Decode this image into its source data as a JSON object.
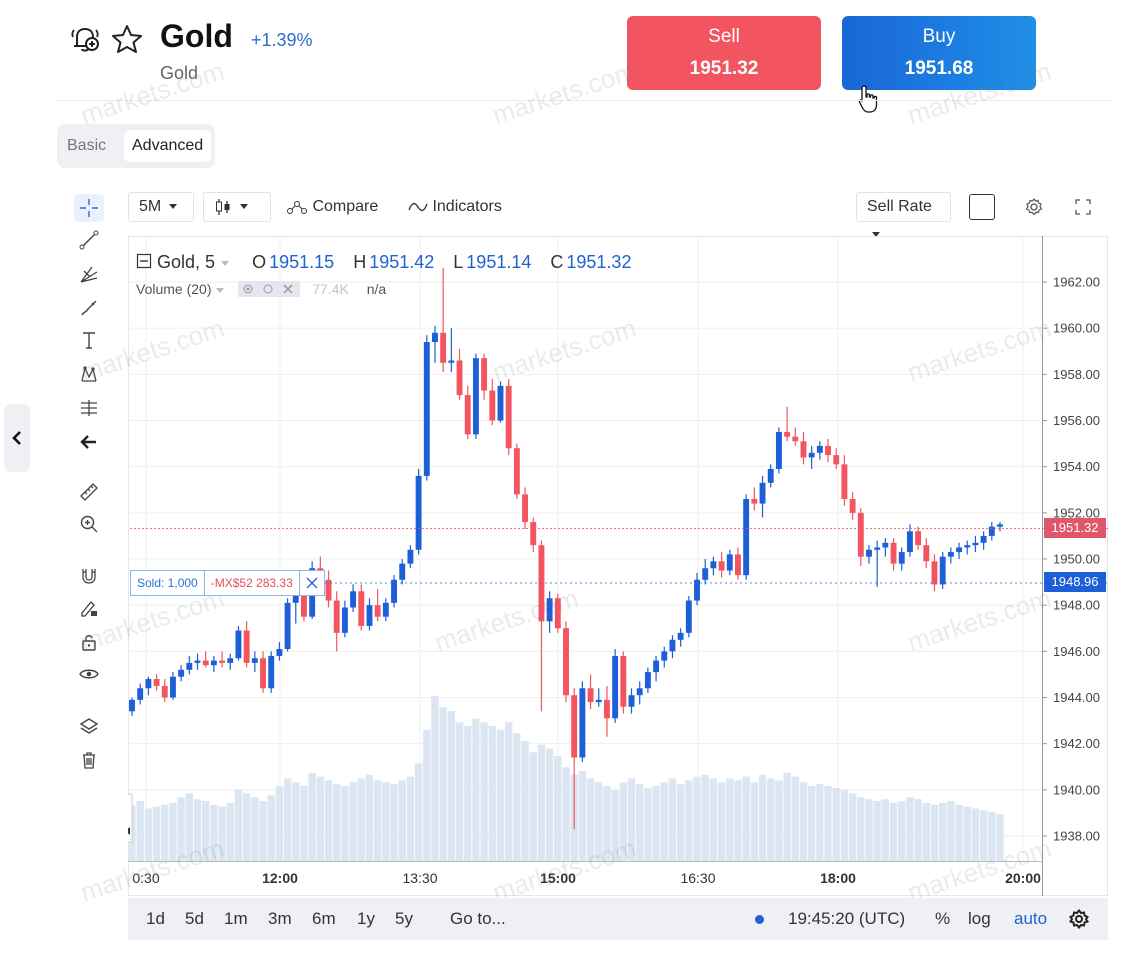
{
  "instrument": {
    "title": "Gold",
    "subtitle": "Gold",
    "change": "+1.39%"
  },
  "trade": {
    "sell_label": "Sell",
    "sell_price": "1951.32",
    "buy_label": "Buy",
    "buy_price": "1951.68"
  },
  "mode_tabs": {
    "basic": "Basic",
    "advanced": "Advanced",
    "selected": "Advanced"
  },
  "toolbar": {
    "interval": "5M",
    "compare": "Compare",
    "indicators": "Indicators",
    "rate": "Sell Rate"
  },
  "legend": {
    "series": "Gold, 5",
    "o_key": "O",
    "o": "1951.15",
    "h_key": "H",
    "h": "1951.42",
    "l_key": "L",
    "l": "1951.14",
    "c_key": "C",
    "c": "1951.32",
    "volume_label": "Volume (20)",
    "volume_value": "77.4K",
    "volume_na": "n/a"
  },
  "trade_line": {
    "sold": "Sold: 1,000",
    "pnl": "-MX$52 283.33"
  },
  "price_tags": {
    "sell": "1951.32",
    "buy": "1948.96"
  },
  "bottom_bar": {
    "ranges": [
      "1d",
      "5d",
      "1m",
      "3m",
      "6m",
      "1y",
      "5y"
    ],
    "goto": "Go to...",
    "time": "19:45:20 (UTC)",
    "percent": "%",
    "log": "log",
    "auto": "auto"
  },
  "watermark": "markets.com",
  "colors": {
    "up": "#1c5fd6",
    "down": "#f2555f",
    "volume": "#dbe6f2",
    "accent": "#1e62d0"
  },
  "chart_data": {
    "type": "candlestick",
    "y_ticks": [
      "1962.00",
      "1960.00",
      "1958.00",
      "1956.00",
      "1954.00",
      "1952.00",
      "1950.00",
      "1948.00",
      "1946.00",
      "1944.00",
      "1942.00",
      "1940.00",
      "1938.00"
    ],
    "x_ticks": [
      "0:30",
      "12:00",
      "13:30",
      "15:00",
      "16:30",
      "18:00",
      "20:00"
    ],
    "ylim": [
      1937.2,
      1963.6
    ],
    "candles": [
      [
        1943.4,
        1944.0,
        1943.2,
        1943.9
      ],
      [
        1943.9,
        1944.6,
        1943.7,
        1944.4
      ],
      [
        1944.4,
        1944.9,
        1944.1,
        1944.8
      ],
      [
        1944.8,
        1945.0,
        1944.3,
        1944.5
      ],
      [
        1944.5,
        1944.8,
        1943.8,
        1944.0
      ],
      [
        1944.0,
        1945.1,
        1943.9,
        1944.9
      ],
      [
        1944.9,
        1945.4,
        1944.7,
        1945.2
      ],
      [
        1945.2,
        1945.8,
        1945.0,
        1945.5
      ],
      [
        1945.5,
        1945.9,
        1945.2,
        1945.6
      ],
      [
        1945.6,
        1946.0,
        1945.3,
        1945.4
      ],
      [
        1945.4,
        1945.8,
        1945.1,
        1945.6
      ],
      [
        1945.6,
        1946.0,
        1945.3,
        1945.5
      ],
      [
        1945.5,
        1945.9,
        1945.2,
        1945.7
      ],
      [
        1945.7,
        1947.1,
        1945.6,
        1946.9
      ],
      [
        1946.9,
        1947.3,
        1945.3,
        1945.5
      ],
      [
        1945.5,
        1946.0,
        1945.1,
        1945.7
      ],
      [
        1945.7,
        1946.0,
        1944.2,
        1944.4
      ],
      [
        1944.4,
        1946.0,
        1944.2,
        1945.8
      ],
      [
        1945.8,
        1946.4,
        1945.6,
        1946.1
      ],
      [
        1946.1,
        1948.3,
        1946.0,
        1948.1
      ],
      [
        1948.1,
        1949.0,
        1947.2,
        1948.6
      ],
      [
        1948.6,
        1948.9,
        1947.3,
        1947.5
      ],
      [
        1947.5,
        1949.9,
        1947.4,
        1949.6
      ],
      [
        1949.6,
        1950.1,
        1948.9,
        1949.1
      ],
      [
        1949.1,
        1949.5,
        1947.9,
        1948.2
      ],
      [
        1948.2,
        1948.6,
        1946.0,
        1946.8
      ],
      [
        1946.8,
        1948.2,
        1946.6,
        1947.9
      ],
      [
        1947.9,
        1948.9,
        1947.7,
        1948.6
      ],
      [
        1948.6,
        1948.9,
        1946.9,
        1947.1
      ],
      [
        1947.1,
        1948.3,
        1946.9,
        1948.0
      ],
      [
        1948.0,
        1948.7,
        1947.3,
        1947.5
      ],
      [
        1947.5,
        1948.3,
        1947.3,
        1948.1
      ],
      [
        1948.1,
        1949.3,
        1947.9,
        1949.1
      ],
      [
        1949.1,
        1950.0,
        1948.9,
        1949.8
      ],
      [
        1949.8,
        1950.6,
        1949.6,
        1950.4
      ],
      [
        1950.4,
        1953.9,
        1950.2,
        1953.6
      ],
      [
        1953.6,
        1959.7,
        1953.4,
        1959.4
      ],
      [
        1959.4,
        1960.1,
        1958.5,
        1959.8
      ],
      [
        1959.8,
        1962.6,
        1958.1,
        1958.5
      ],
      [
        1958.5,
        1960.0,
        1958.1,
        1958.6
      ],
      [
        1958.6,
        1959.1,
        1956.9,
        1957.1
      ],
      [
        1957.1,
        1957.5,
        1955.2,
        1955.4
      ],
      [
        1955.4,
        1958.9,
        1955.2,
        1958.7
      ],
      [
        1958.7,
        1958.9,
        1956.9,
        1957.3
      ],
      [
        1957.3,
        1957.8,
        1955.8,
        1956.0
      ],
      [
        1956.0,
        1957.7,
        1955.9,
        1957.5
      ],
      [
        1957.5,
        1957.8,
        1954.5,
        1954.8
      ],
      [
        1954.8,
        1955.0,
        1952.6,
        1952.8
      ],
      [
        1952.8,
        1953.1,
        1951.3,
        1951.6
      ],
      [
        1951.6,
        1951.8,
        1950.3,
        1950.6
      ],
      [
        1950.6,
        1950.8,
        1943.4,
        1947.3
      ],
      [
        1947.3,
        1948.6,
        1946.8,
        1948.3
      ],
      [
        1948.3,
        1948.5,
        1946.8,
        1947.0
      ],
      [
        1947.0,
        1947.3,
        1943.8,
        1944.1
      ],
      [
        1944.1,
        1944.4,
        1938.3,
        1941.4
      ],
      [
        1941.4,
        1944.7,
        1941.2,
        1944.4
      ],
      [
        1944.4,
        1945.0,
        1943.5,
        1943.8
      ],
      [
        1943.8,
        1944.4,
        1943.6,
        1943.9
      ],
      [
        1943.9,
        1944.5,
        1942.3,
        1943.1
      ],
      [
        1943.1,
        1946.1,
        1942.9,
        1945.8
      ],
      [
        1945.8,
        1946.0,
        1943.3,
        1943.6
      ],
      [
        1943.6,
        1944.4,
        1943.3,
        1944.1
      ],
      [
        1944.1,
        1944.7,
        1943.7,
        1944.4
      ],
      [
        1944.4,
        1945.3,
        1944.2,
        1945.1
      ],
      [
        1945.1,
        1945.8,
        1944.7,
        1945.6
      ],
      [
        1945.6,
        1946.2,
        1945.3,
        1946.0
      ],
      [
        1946.0,
        1946.7,
        1945.7,
        1946.5
      ],
      [
        1946.5,
        1947.0,
        1946.2,
        1946.8
      ],
      [
        1946.8,
        1948.4,
        1946.6,
        1948.2
      ],
      [
        1948.2,
        1949.4,
        1948.0,
        1949.1
      ],
      [
        1949.1,
        1950.0,
        1948.9,
        1949.6
      ],
      [
        1949.6,
        1950.1,
        1949.3,
        1949.9
      ],
      [
        1949.9,
        1950.3,
        1949.2,
        1949.5
      ],
      [
        1949.5,
        1950.4,
        1949.3,
        1950.2
      ],
      [
        1950.2,
        1950.5,
        1949.1,
        1949.3
      ],
      [
        1949.3,
        1952.8,
        1949.1,
        1952.6
      ],
      [
        1952.6,
        1953.1,
        1952.1,
        1952.4
      ],
      [
        1952.4,
        1953.6,
        1951.8,
        1953.3
      ],
      [
        1953.3,
        1954.1,
        1953.1,
        1953.9
      ],
      [
        1953.9,
        1955.7,
        1953.7,
        1955.5
      ],
      [
        1955.5,
        1956.6,
        1955.1,
        1955.3
      ],
      [
        1955.3,
        1955.7,
        1954.9,
        1955.1
      ],
      [
        1955.1,
        1955.5,
        1954.1,
        1954.4
      ],
      [
        1954.4,
        1954.9,
        1953.9,
        1954.6
      ],
      [
        1954.6,
        1955.1,
        1954.3,
        1954.9
      ],
      [
        1954.9,
        1955.2,
        1954.2,
        1954.5
      ],
      [
        1954.5,
        1954.8,
        1953.9,
        1954.1
      ],
      [
        1954.1,
        1954.5,
        1952.3,
        1952.6
      ],
      [
        1952.6,
        1952.9,
        1951.7,
        1952.0
      ],
      [
        1952.0,
        1952.2,
        1949.7,
        1950.1
      ],
      [
        1950.1,
        1950.6,
        1949.8,
        1950.4
      ],
      [
        1950.4,
        1950.8,
        1948.8,
        1950.5
      ],
      [
        1950.5,
        1950.9,
        1950.1,
        1950.7
      ],
      [
        1950.7,
        1950.9,
        1949.5,
        1949.8
      ],
      [
        1949.8,
        1950.5,
        1949.5,
        1950.3
      ],
      [
        1950.3,
        1951.5,
        1950.1,
        1951.2
      ],
      [
        1951.2,
        1951.4,
        1950.4,
        1950.6
      ],
      [
        1950.6,
        1950.9,
        1949.6,
        1949.9
      ],
      [
        1949.9,
        1950.2,
        1948.6,
        1948.9
      ],
      [
        1948.9,
        1950.3,
        1948.7,
        1950.1
      ],
      [
        1950.1,
        1950.5,
        1949.8,
        1950.3
      ],
      [
        1950.3,
        1950.7,
        1950.0,
        1950.5
      ],
      [
        1950.5,
        1950.8,
        1950.2,
        1950.6
      ],
      [
        1950.6,
        1951.0,
        1950.3,
        1950.7
      ],
      [
        1950.7,
        1951.2,
        1950.4,
        1951.0
      ],
      [
        1951.0,
        1951.6,
        1950.8,
        1951.4
      ],
      [
        1951.4,
        1951.6,
        1951.2,
        1951.5
      ]
    ],
    "volume": [
      30,
      32,
      28,
      29,
      30,
      31,
      34,
      36,
      33,
      32,
      30,
      29,
      31,
      38,
      36,
      34,
      32,
      35,
      40,
      44,
      42,
      40,
      47,
      45,
      43,
      41,
      40,
      42,
      44,
      46,
      43,
      42,
      41,
      43,
      45,
      52,
      70,
      88,
      82,
      80,
      74,
      72,
      76,
      74,
      72,
      70,
      74,
      68,
      64,
      58,
      62,
      60,
      56,
      50,
      46,
      48,
      44,
      42,
      40,
      38,
      42,
      44,
      41,
      39,
      40,
      42,
      44,
      41,
      43,
      45,
      46,
      44,
      42,
      44,
      43,
      45,
      42,
      46,
      44,
      43,
      47,
      45,
      42,
      40,
      41,
      40,
      39,
      38,
      36,
      34,
      33,
      32,
      33,
      31,
      32,
      34,
      33,
      31,
      30,
      31,
      32,
      30,
      29,
      28,
      27,
      26,
      25
    ]
  }
}
